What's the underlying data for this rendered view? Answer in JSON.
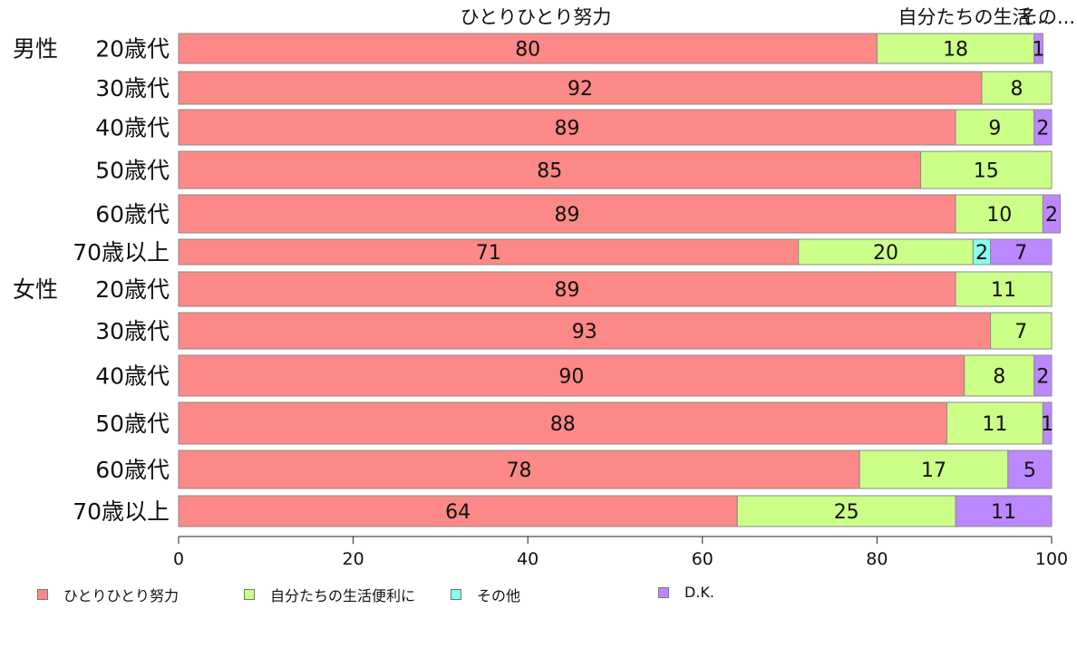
{
  "chart_data": {
    "type": "bar",
    "orientation": "horizontal",
    "stacked": true,
    "categories": [
      "20歳代",
      "30歳代",
      "40歳代",
      "50歳代",
      "60歳代",
      "70歳以上",
      "20歳代",
      "30歳代",
      "40歳代",
      "50歳代",
      "60歳代",
      "70歳以上"
    ],
    "group_labels": [
      {
        "label": "男性",
        "row": 0
      },
      {
        "label": "女性",
        "row": 6
      }
    ],
    "top_labels": [
      "ひとりひとり努力",
      "自分たちの生活...",
      "その..."
    ],
    "series": [
      {
        "name": "ひとりひとり努力",
        "color": "#fd8888",
        "values": [
          80,
          92,
          89,
          85,
          89,
          71,
          89,
          93,
          90,
          88,
          78,
          64
        ]
      },
      {
        "name": "自分たちの生活便利に",
        "color": "#ccff88",
        "values": [
          18,
          8,
          9,
          15,
          10,
          20,
          11,
          7,
          8,
          11,
          17,
          25
        ]
      },
      {
        "name": "その他",
        "color": "#88ffee",
        "values": [
          0,
          0,
          0,
          0,
          0,
          2,
          0,
          0,
          0,
          0,
          0,
          0
        ]
      },
      {
        "name": "D.K.",
        "color": "#bb88ff",
        "values": [
          1,
          0,
          2,
          0,
          2,
          7,
          0,
          0,
          2,
          1,
          5,
          11
        ]
      }
    ],
    "xlim": [
      0,
      100
    ],
    "xticks": [
      0,
      20,
      40,
      60,
      80,
      100
    ],
    "grid": false,
    "legend_position": "bottom"
  }
}
